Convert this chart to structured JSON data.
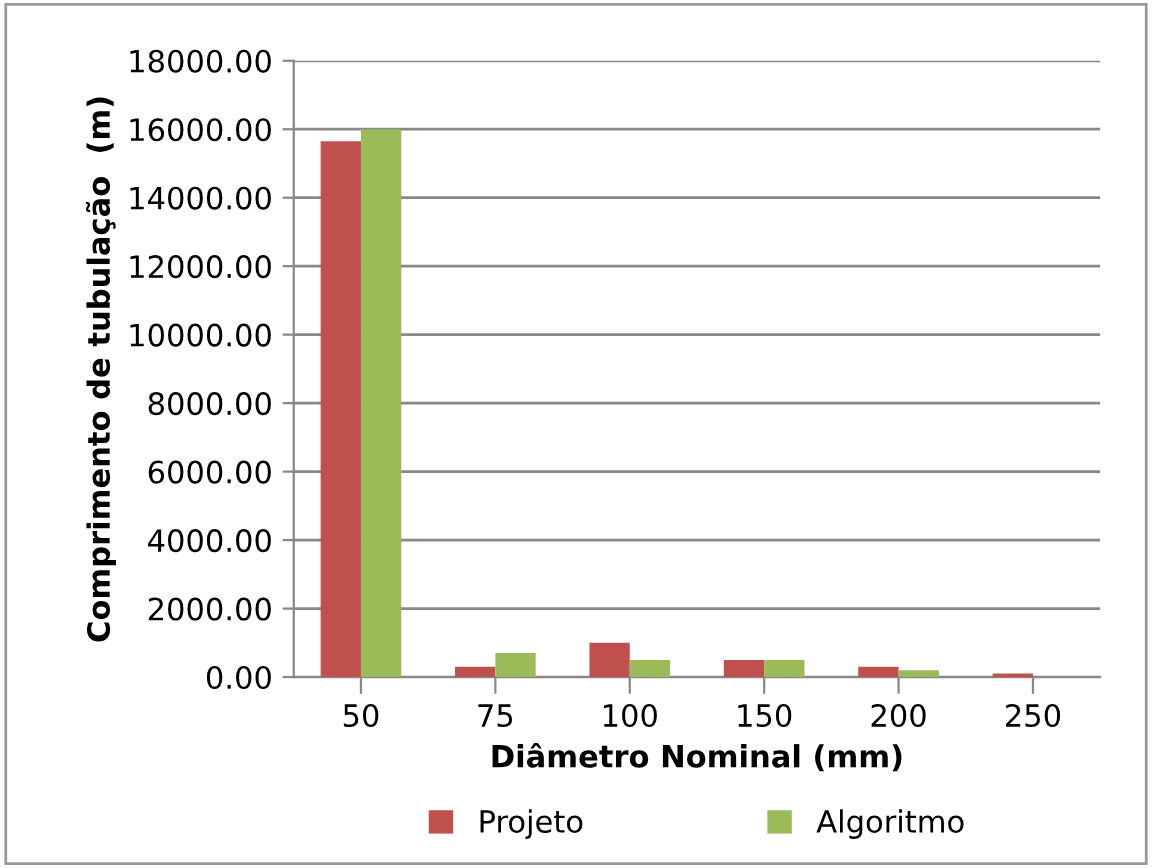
{
  "chart_data": {
    "type": "bar",
    "xlabel": "Diâmetro Nominal (mm)",
    "ylabel": "Comprimento de tubulação  (m)",
    "categories": [
      "50",
      "75",
      "100",
      "150",
      "200",
      "250"
    ],
    "series": [
      {
        "name": "Projeto",
        "color": "#c0504d",
        "values": [
          15650,
          300,
          1000,
          500,
          300,
          100
        ]
      },
      {
        "name": "Algoritmo",
        "color": "#9bbb59",
        "values": [
          16000,
          700,
          500,
          500,
          200,
          0
        ]
      }
    ],
    "ylim": [
      0,
      18000
    ],
    "yticks": [
      {
        "value": 0,
        "label": "0.00"
      },
      {
        "value": 2000,
        "label": "2000.00"
      },
      {
        "value": 4000,
        "label": "4000.00"
      },
      {
        "value": 6000,
        "label": "6000.00"
      },
      {
        "value": 8000,
        "label": "8000.00"
      },
      {
        "value": 10000,
        "label": "10000.00"
      },
      {
        "value": 12000,
        "label": "12000.00"
      },
      {
        "value": 14000,
        "label": "14000.00"
      },
      {
        "value": 16000,
        "label": "16000.00"
      },
      {
        "value": 18000,
        "label": "18000.00"
      }
    ],
    "grid": "y",
    "legend": "bottom"
  }
}
